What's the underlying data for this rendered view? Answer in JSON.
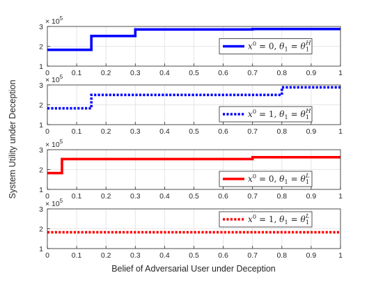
{
  "figure": {
    "ylabel": "System Utility under Deception",
    "xlabel": "Belief of Adversarial User under Deception"
  },
  "chart_data": [
    {
      "type": "line",
      "step": true,
      "color": "#0000ff",
      "line_style": "solid",
      "legend_location": "right-center",
      "xlim": [
        0,
        1
      ],
      "ylim": [
        100000,
        300000
      ],
      "x_ticks": [
        "0",
        "0.1",
        "0.2",
        "0.3",
        "0.4",
        "0.5",
        "0.6",
        "0.7",
        "0.8",
        "0.9",
        "1"
      ],
      "y_ticks": [
        "1",
        "2",
        "3"
      ],
      "y_exponent": "× 10",
      "y_exponent_power": "5",
      "grid": true,
      "series": [
        {
          "name": "x^0 = 0, θ_1 = θ_1^H",
          "legend": {
            "x": "x",
            "x_sup": "0",
            "mid": " = 0, ",
            "theta": "θ",
            "sub1": "1",
            "eq": " = ",
            "theta2": "θ",
            "sub2": "1",
            "sup2": "H"
          },
          "x": [
            0,
            0.15,
            0.15,
            0.3,
            0.3,
            0.7,
            0.7,
            1
          ],
          "y": [
            182000,
            182000,
            252000,
            252000,
            285000,
            285000,
            287000,
            287000
          ]
        }
      ]
    },
    {
      "type": "line",
      "step": true,
      "color": "#0000ff",
      "line_style": "dotted",
      "legend_location": "bottom-right",
      "xlim": [
        0,
        1
      ],
      "ylim": [
        100000,
        300000
      ],
      "x_ticks": [
        "0",
        "0.1",
        "0.2",
        "0.3",
        "0.4",
        "0.5",
        "0.6",
        "0.7",
        "0.8",
        "0.9",
        "1"
      ],
      "y_ticks": [
        "1",
        "2",
        "3"
      ],
      "y_exponent": "× 10",
      "y_exponent_power": "5",
      "grid": true,
      "series": [
        {
          "name": "x^0 = 1, θ_1 = θ_1^H",
          "legend": {
            "x": "x",
            "x_sup": "0",
            "mid": " = 1, ",
            "theta": "θ",
            "sub1": "1",
            "eq": " = ",
            "theta2": "θ",
            "sub2": "1",
            "sup2": "H"
          },
          "x": [
            0,
            0.15,
            0.15,
            0.8,
            0.8,
            1
          ],
          "y": [
            182000,
            182000,
            250000,
            250000,
            288000,
            288000
          ]
        }
      ]
    },
    {
      "type": "line",
      "step": true,
      "color": "#ff0000",
      "line_style": "solid",
      "legend_location": "bottom-right",
      "xlim": [
        0,
        1
      ],
      "ylim": [
        100000,
        300000
      ],
      "x_ticks": [
        "0",
        "0.1",
        "0.2",
        "0.3",
        "0.4",
        "0.5",
        "0.6",
        "0.7",
        "0.8",
        "0.9",
        "1"
      ],
      "y_ticks": [
        "1",
        "2",
        "3"
      ],
      "y_exponent": "× 10",
      "y_exponent_power": "5",
      "grid": true,
      "series": [
        {
          "name": "x^0 = 0, θ_1 = θ_1^L",
          "legend": {
            "x": "x",
            "x_sup": "0",
            "mid": " = 0, ",
            "theta": "θ",
            "sub1": "1",
            "eq": " = ",
            "theta2": "θ",
            "sub2": "1",
            "sup2": "L"
          },
          "x": [
            0,
            0.05,
            0.05,
            0.7,
            0.7,
            1
          ],
          "y": [
            182000,
            182000,
            253000,
            253000,
            262000,
            262000
          ]
        }
      ]
    },
    {
      "type": "line",
      "step": true,
      "color": "#ff0000",
      "line_style": "dotted",
      "legend_location": "top-right",
      "xlim": [
        0,
        1
      ],
      "ylim": [
        100000,
        300000
      ],
      "x_ticks": [
        "0",
        "0.1",
        "0.2",
        "0.3",
        "0.4",
        "0.5",
        "0.6",
        "0.7",
        "0.8",
        "0.9",
        "1"
      ],
      "y_ticks": [
        "1",
        "2",
        "3"
      ],
      "y_exponent": "× 10",
      "y_exponent_power": "5",
      "grid": true,
      "series": [
        {
          "name": "x^0 = 1, θ_1 = θ_1^L",
          "legend": {
            "x": "x",
            "x_sup": "0",
            "mid": " = 1, ",
            "theta": "θ",
            "sub1": "1",
            "eq": " = ",
            "theta2": "θ",
            "sub2": "1",
            "sup2": "L"
          },
          "x": [
            0,
            1
          ],
          "y": [
            182000,
            182000
          ]
        }
      ]
    }
  ]
}
